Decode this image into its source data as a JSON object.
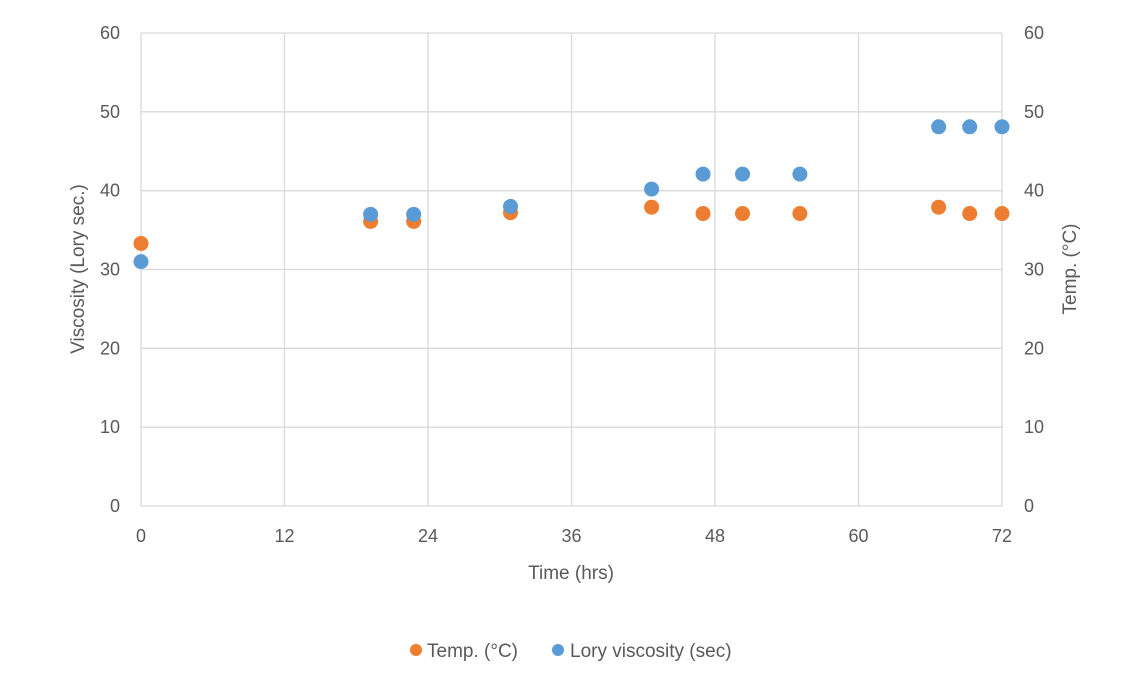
{
  "chart_data": {
    "type": "scatter",
    "title": "",
    "xlabel": "Time (hrs)",
    "ylabel": "Viscosity (Lory sec.)",
    "y2label": "Temp. (°C)",
    "xlim": [
      0,
      72
    ],
    "ylim": [
      0,
      60
    ],
    "y2lim": [
      0,
      60
    ],
    "x_ticks": [
      "0",
      "12",
      "24",
      "36",
      "48",
      "60",
      "72"
    ],
    "y_ticks": [
      "0",
      "10",
      "20",
      "30",
      "40",
      "50",
      "60"
    ],
    "y2_ticks": [
      "0",
      "10",
      "20",
      "30",
      "40",
      "50",
      "60"
    ],
    "grid": true,
    "legend_position": "bottom",
    "series": [
      {
        "name": "Temp. (°C)",
        "axis": "right",
        "color": "#ED7D31",
        "points": [
          {
            "x": 0,
            "y": 33.3
          },
          {
            "x": 19.2,
            "y": 36.1
          },
          {
            "x": 22.8,
            "y": 36.1
          },
          {
            "x": 30.9,
            "y": 37.2
          },
          {
            "x": 42.7,
            "y": 37.9
          },
          {
            "x": 47.0,
            "y": 37.1
          },
          {
            "x": 50.3,
            "y": 37.1
          },
          {
            "x": 55.1,
            "y": 37.1
          },
          {
            "x": 66.7,
            "y": 37.9
          },
          {
            "x": 69.3,
            "y": 37.1
          },
          {
            "x": 72,
            "y": 37.1
          }
        ]
      },
      {
        "name": "Lory viscosity (sec)",
        "axis": "left",
        "color": "#5B9BD5",
        "points": [
          {
            "x": 0,
            "y": 31
          },
          {
            "x": 19.2,
            "y": 37
          },
          {
            "x": 22.8,
            "y": 37
          },
          {
            "x": 30.9,
            "y": 38
          },
          {
            "x": 42.7,
            "y": 40.2
          },
          {
            "x": 47.0,
            "y": 42.1
          },
          {
            "x": 50.3,
            "y": 42.1
          },
          {
            "x": 55.1,
            "y": 42.1
          },
          {
            "x": 66.7,
            "y": 48.1
          },
          {
            "x": 69.3,
            "y": 48.1
          },
          {
            "x": 72,
            "y": 48.1
          }
        ]
      }
    ]
  }
}
